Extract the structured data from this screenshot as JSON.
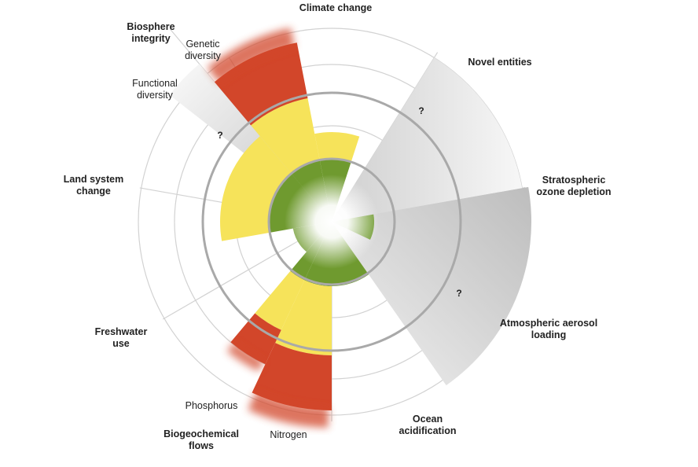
{
  "categories": [
    {
      "id": "climate-change",
      "lines": [
        "Climate change"
      ],
      "status": "increasing-risk"
    },
    {
      "id": "novel-entities",
      "lines": [
        "Novel entities"
      ],
      "status": "not-quantified"
    },
    {
      "id": "stratospheric-ozone-depletion",
      "lines": [
        "Stratospheric",
        "ozone depletion"
      ],
      "status": "safe"
    },
    {
      "id": "atmospheric-aerosol-loading",
      "lines": [
        "Atmospheric aerosol",
        "loading"
      ],
      "status": "not-quantified"
    },
    {
      "id": "ocean-acidification",
      "lines": [
        "Ocean",
        "acidification"
      ],
      "status": "safe"
    },
    {
      "id": "biogeochemical-flows",
      "lines": [
        "Biogeochemical",
        "flows"
      ],
      "status": "high-risk"
    },
    {
      "id": "freshwater-use",
      "lines": [
        "Freshwater",
        "use"
      ],
      "status": "safe"
    },
    {
      "id": "land-system-change",
      "lines": [
        "Land system",
        "change"
      ],
      "status": "increasing-risk"
    },
    {
      "id": "biosphere-integrity",
      "lines": [
        "Biosphere",
        "integrity"
      ],
      "status": "high-risk"
    }
  ],
  "sub_labels": [
    {
      "id": "genetic-diversity",
      "lines": [
        "Genetic",
        "diversity"
      ]
    },
    {
      "id": "functional-diversity",
      "lines": [
        "Functional",
        "diversity"
      ]
    },
    {
      "id": "phosphorus",
      "lines": [
        "Phosphorus"
      ]
    },
    {
      "id": "nitrogen",
      "lines": [
        "Nitrogen"
      ]
    }
  ],
  "question_mark": "?",
  "colors": {
    "safe": "#6f9a2f",
    "increasing_risk": "#f6e35a",
    "high_risk": "#d2462a",
    "not_quantified": "#cfcfcf",
    "boundary_ring": "#a9a9a9",
    "grid": "#d2d2d2"
  }
}
